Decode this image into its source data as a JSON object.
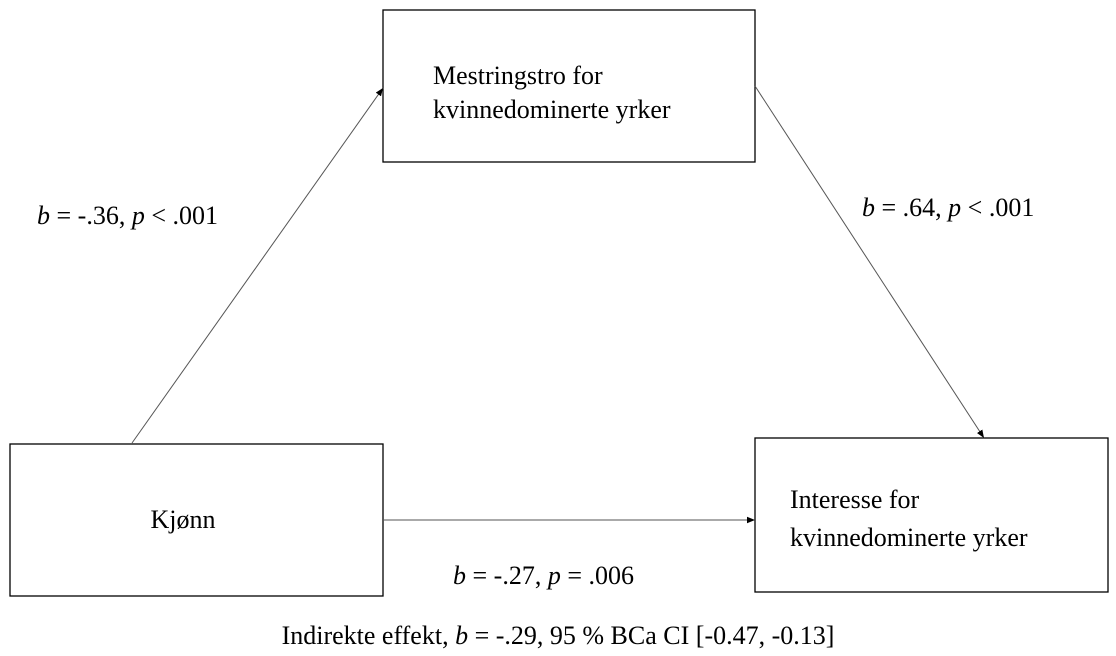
{
  "nodes": [
    {
      "lines": [
        "Mestringstro for",
        "kvinnedominerte yrker"
      ]
    },
    {
      "lines": [
        "Kjønn"
      ]
    },
    {
      "lines": [
        "Interesse for",
        "kvinnedominerte yrker"
      ]
    }
  ],
  "edges": [
    {
      "label": [
        "b",
        " = -.36, ",
        "p",
        " < .001"
      ]
    },
    {
      "label": [
        "b",
        " = .64, ",
        "p",
        " < .001"
      ]
    },
    {
      "label": [
        "b",
        " = -.27, ",
        "p",
        " = .006"
      ]
    }
  ],
  "footer": [
    "Indirekte effekt, ",
    "b",
    " = -.29, 95 % BCa CI [-0.47, -0.13]"
  ]
}
